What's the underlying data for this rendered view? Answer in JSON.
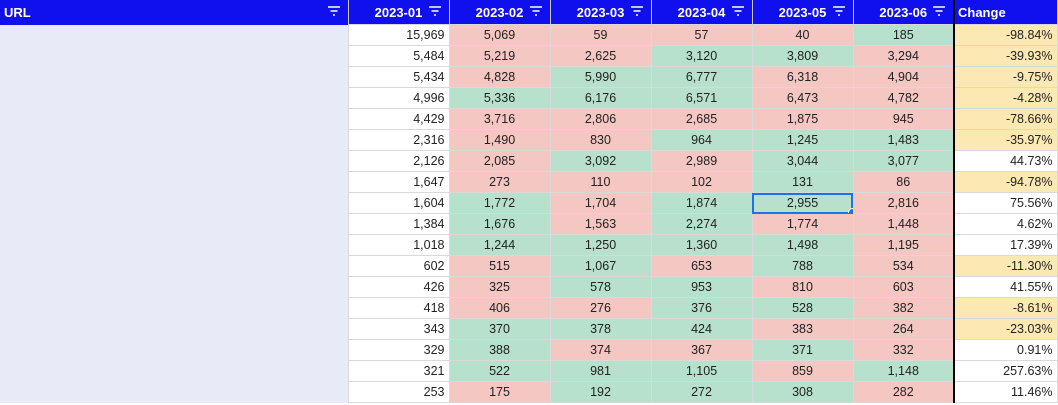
{
  "header": {
    "url_label": "URL",
    "months": [
      "2023-01",
      "2023-02",
      "2023-03",
      "2023-04",
      "2023-05",
      "2023-06"
    ],
    "change_label": "Change"
  },
  "colors": {
    "header_bg": "#1010ee",
    "header_text": "#ffffff",
    "decrease_cell": "#f4c7c3",
    "increase_cell": "#b7e1cd",
    "negative_change": "#fce8b2",
    "url_column_bg": "#e8eaf8",
    "selection": "#1a73e8"
  },
  "icons": {
    "filter": "filter-icon"
  },
  "selected_cell": {
    "row": 8,
    "column": "2023-05"
  },
  "rows": [
    {
      "url": "",
      "values": [
        "15,969",
        "5,069",
        "59",
        "57",
        "40",
        "185"
      ],
      "trend": [
        "none",
        "down",
        "down",
        "down",
        "down",
        "up"
      ],
      "change": "-98.84%"
    },
    {
      "url": "",
      "values": [
        "5,484",
        "5,219",
        "2,625",
        "3,120",
        "3,809",
        "3,294"
      ],
      "trend": [
        "none",
        "down",
        "down",
        "up",
        "up",
        "down"
      ],
      "change": "-39.93%"
    },
    {
      "url": "",
      "values": [
        "5,434",
        "4,828",
        "5,990",
        "6,777",
        "6,318",
        "4,904"
      ],
      "trend": [
        "none",
        "down",
        "up",
        "up",
        "down",
        "down"
      ],
      "change": "-9.75%"
    },
    {
      "url": "",
      "values": [
        "4,996",
        "5,336",
        "6,176",
        "6,571",
        "6,473",
        "4,782"
      ],
      "trend": [
        "none",
        "up",
        "up",
        "up",
        "down",
        "down"
      ],
      "change": "-4.28%"
    },
    {
      "url": "",
      "values": [
        "4,429",
        "3,716",
        "2,806",
        "2,685",
        "1,875",
        "945"
      ],
      "trend": [
        "none",
        "down",
        "down",
        "down",
        "down",
        "down"
      ],
      "change": "-78.66%"
    },
    {
      "url": "",
      "values": [
        "2,316",
        "1,490",
        "830",
        "964",
        "1,245",
        "1,483"
      ],
      "trend": [
        "none",
        "down",
        "down",
        "up",
        "up",
        "up"
      ],
      "change": "-35.97%"
    },
    {
      "url": "",
      "values": [
        "2,126",
        "2,085",
        "3,092",
        "2,989",
        "3,044",
        "3,077"
      ],
      "trend": [
        "none",
        "down",
        "up",
        "down",
        "up",
        "up"
      ],
      "change": "44.73%"
    },
    {
      "url": "",
      "values": [
        "1,647",
        "273",
        "110",
        "102",
        "131",
        "86"
      ],
      "trend": [
        "none",
        "down",
        "down",
        "down",
        "up",
        "down"
      ],
      "change": "-94.78%"
    },
    {
      "url": "",
      "values": [
        "1,604",
        "1,772",
        "1,704",
        "1,874",
        "2,955",
        "2,816"
      ],
      "trend": [
        "none",
        "up",
        "down",
        "up",
        "up",
        "down"
      ],
      "change": "75.56%"
    },
    {
      "url": "",
      "values": [
        "1,384",
        "1,676",
        "1,563",
        "2,274",
        "1,774",
        "1,448"
      ],
      "trend": [
        "none",
        "up",
        "down",
        "up",
        "down",
        "down"
      ],
      "change": "4.62%"
    },
    {
      "url": "",
      "values": [
        "1,018",
        "1,244",
        "1,250",
        "1,360",
        "1,498",
        "1,195"
      ],
      "trend": [
        "none",
        "up",
        "up",
        "up",
        "up",
        "down"
      ],
      "change": "17.39%"
    },
    {
      "url": "",
      "values": [
        "602",
        "515",
        "1,067",
        "653",
        "788",
        "534"
      ],
      "trend": [
        "none",
        "down",
        "up",
        "down",
        "up",
        "down"
      ],
      "change": "-11.30%"
    },
    {
      "url": "",
      "values": [
        "426",
        "325",
        "578",
        "953",
        "810",
        "603"
      ],
      "trend": [
        "none",
        "down",
        "up",
        "up",
        "down",
        "down"
      ],
      "change": "41.55%"
    },
    {
      "url": "",
      "values": [
        "418",
        "406",
        "276",
        "376",
        "528",
        "382"
      ],
      "trend": [
        "none",
        "down",
        "down",
        "up",
        "up",
        "down"
      ],
      "change": "-8.61%"
    },
    {
      "url": "",
      "values": [
        "343",
        "370",
        "378",
        "424",
        "383",
        "264"
      ],
      "trend": [
        "none",
        "up",
        "up",
        "up",
        "down",
        "down"
      ],
      "change": "-23.03%"
    },
    {
      "url": "",
      "values": [
        "329",
        "388",
        "374",
        "367",
        "371",
        "332"
      ],
      "trend": [
        "none",
        "up",
        "down",
        "down",
        "up",
        "down"
      ],
      "change": "0.91%"
    },
    {
      "url": "",
      "values": [
        "321",
        "522",
        "981",
        "1,105",
        "859",
        "1,148"
      ],
      "trend": [
        "none",
        "up",
        "up",
        "up",
        "down",
        "up"
      ],
      "change": "257.63%"
    },
    {
      "url": "",
      "values": [
        "253",
        "175",
        "192",
        "272",
        "308",
        "282"
      ],
      "trend": [
        "none",
        "down",
        "up",
        "up",
        "up",
        "down"
      ],
      "change": "11.46%"
    }
  ]
}
